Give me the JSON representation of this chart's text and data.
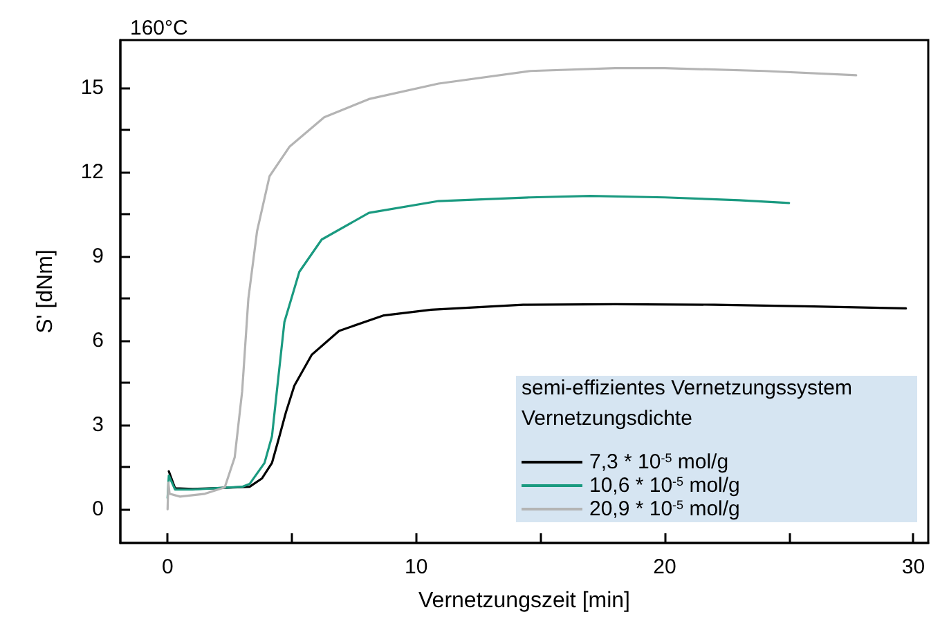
{
  "chart_data": {
    "type": "line",
    "title": "160°C",
    "xlabel": "Vernetzungszeit [min]",
    "ylabel": "S' [dNm]",
    "legend_title": "semi-effizientes Vernetzungssystem\nVernetzungsdichte",
    "legend": "bottom right",
    "grid": false,
    "marker": "none",
    "line_style": "solid",
    "xlim": [
      -1.9,
      30.6
    ],
    "xticks": [
      0,
      {
        "value": 5,
        "label": null
      },
      10,
      {
        "value": 15,
        "label": null
      },
      20,
      {
        "value": 25,
        "label": null
      },
      30
    ],
    "ylim": [
      -1.2,
      16.7
    ],
    "yticks": [
      0,
      {
        "value": 1.5,
        "label": null
      },
      3,
      {
        "value": 4.5,
        "label": null
      },
      6,
      {
        "value": 7.5,
        "label": null
      },
      9,
      {
        "value": 10.5,
        "label": null
      },
      12,
      {
        "value": 13.5,
        "label": null
      },
      15
    ],
    "series": [
      {
        "name": "7,3 * 10$^{-5}$ mol/g",
        "color": "#000000",
        "x": [
          0.05,
          0.3,
          1,
          2,
          3.3,
          3.8,
          4.2,
          4.5,
          4.76,
          5.1,
          5.8,
          6.9,
          8.7,
          10.6,
          14.3,
          18,
          22,
          26,
          29.7
        ],
        "values": [
          1.35,
          0.75,
          0.72,
          0.75,
          0.8,
          1.1,
          1.65,
          2.6,
          3.45,
          4.4,
          5.5,
          6.35,
          6.9,
          7.1,
          7.28,
          7.3,
          7.28,
          7.22,
          7.15
        ]
      },
      {
        "name": "10,6 * 10$^{-5}$ mol/g",
        "color": "#1a9a80",
        "x": [
          0,
          0.05,
          0.3,
          1,
          2,
          3.0,
          3.3,
          3.9,
          4.2,
          4.4,
          4.7,
          5.3,
          6.2,
          8.1,
          10.9,
          14.6,
          17,
          20,
          23,
          25
        ],
        "values": [
          0.4,
          1.2,
          0.7,
          0.7,
          0.75,
          0.8,
          0.9,
          1.65,
          2.6,
          4.24,
          6.67,
          8.45,
          9.6,
          10.55,
          10.97,
          11.1,
          11.15,
          11.1,
          11.0,
          10.9
        ]
      },
      {
        "name": "20,9 * 10$^{-5}$ mol/g",
        "color": "#b4b4b4",
        "x": [
          0,
          0.03,
          0.08,
          0.5,
          1.5,
          2.3,
          2.7,
          3.0,
          3.25,
          3.6,
          4.1,
          4.9,
          6.3,
          8.1,
          10.9,
          14.6,
          18,
          20,
          24,
          27.7
        ],
        "values": [
          0.0,
          0.95,
          0.55,
          0.45,
          0.55,
          0.78,
          1.85,
          4.2,
          7.5,
          9.9,
          11.85,
          12.9,
          13.95,
          14.6,
          15.15,
          15.6,
          15.7,
          15.7,
          15.6,
          15.45
        ]
      }
    ]
  }
}
